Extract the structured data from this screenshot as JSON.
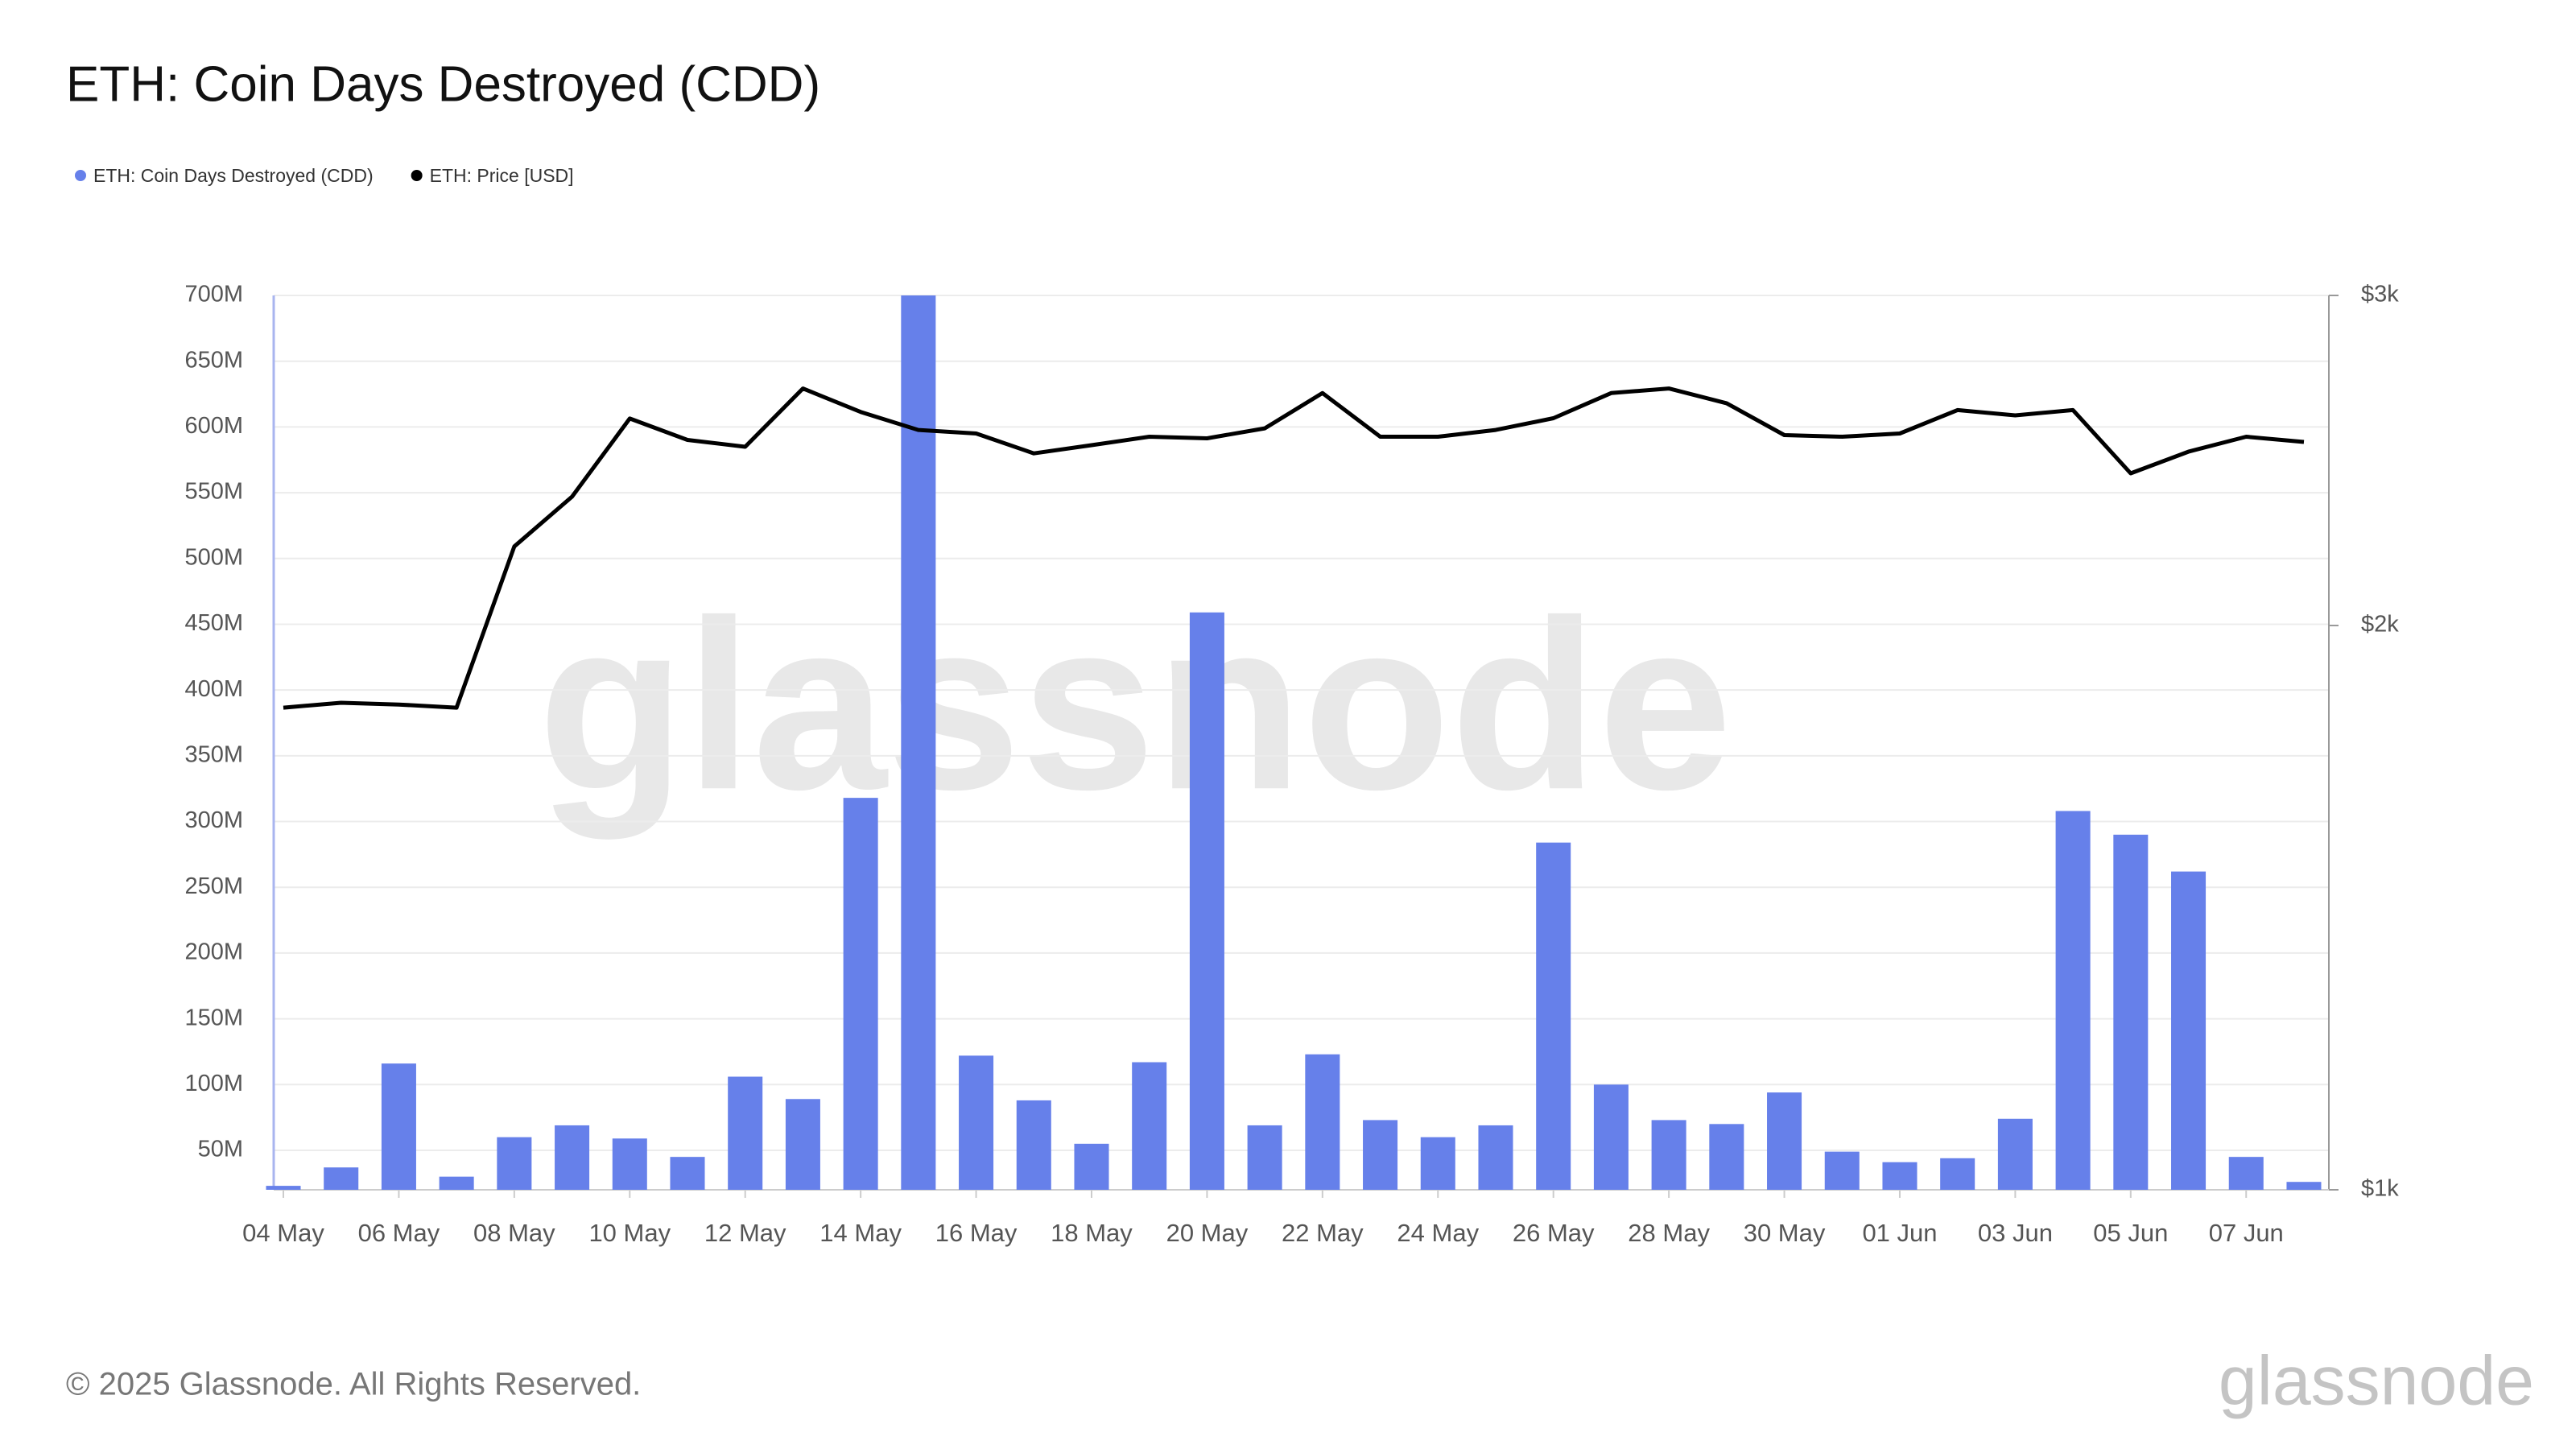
{
  "chart_data": {
    "type": "bar_line",
    "title": "ETH: Coin Days Destroyed (CDD)",
    "footer": "© 2025 Glassnode. All Rights Reserved.",
    "watermark": "glassnode",
    "logo": "glassnode",
    "legend": "top-left",
    "grid": true,
    "categories": [
      "04 May",
      null,
      "06 May",
      null,
      "08 May",
      null,
      "10 May",
      null,
      "12 May",
      null,
      "14 May",
      null,
      "16 May",
      null,
      "18 May",
      null,
      "20 May",
      null,
      "22 May",
      null,
      "24 May",
      null,
      "26 May",
      null,
      "28 May",
      null,
      "30 May",
      null,
      "01 Jun",
      null,
      "03 Jun",
      null,
      "05 Jun",
      null,
      "07 Jun",
      null
    ],
    "series": [
      {
        "name": "ETH: Coin Days Destroyed (CDD)",
        "color": "#6680ea",
        "type": "bar",
        "values": [
          23000000,
          37000000,
          116000000,
          30000000,
          60000000,
          69000000,
          59000000,
          45000000,
          106000000,
          89000000,
          318000000,
          700000000,
          122000000,
          88000000,
          55000000,
          117000000,
          459000000,
          69000000,
          123000000,
          73000000,
          60000000,
          69000000,
          284000000,
          100000000,
          73000000,
          70000000,
          94000000,
          49000000,
          41000000,
          44000000,
          74000000,
          308000000,
          290000000,
          262000000,
          45000000,
          26000000
        ]
      },
      {
        "name": "ETH: Price [USD]",
        "color": "#000000",
        "type": "line",
        "axis": "y2",
        "values": [
          1808,
          1819,
          1815,
          1808,
          2204,
          2343,
          2579,
          2512,
          2491,
          2676,
          2600,
          2543,
          2532,
          2471,
          2496,
          2522,
          2517,
          2548,
          2661,
          2522,
          2522,
          2543,
          2580,
          2661,
          2676,
          2628,
          2527,
          2522,
          2532,
          2606,
          2589,
          2606,
          2411,
          2476,
          2522,
          2506
        ]
      }
    ],
    "ylim": [
      20000000,
      700000000
    ],
    "yticks": [
      {
        "value": 50000000,
        "label": "50M"
      },
      {
        "value": 100000000,
        "label": "100M"
      },
      {
        "value": 150000000,
        "label": "150M"
      },
      {
        "value": 200000000,
        "label": "200M"
      },
      {
        "value": 250000000,
        "label": "250M"
      },
      {
        "value": 300000000,
        "label": "300M"
      },
      {
        "value": 350000000,
        "label": "350M"
      },
      {
        "value": 400000000,
        "label": "400M"
      },
      {
        "value": 450000000,
        "label": "450M"
      },
      {
        "value": 500000000,
        "label": "500M"
      },
      {
        "value": 550000000,
        "label": "550M"
      },
      {
        "value": 600000000,
        "label": "600M"
      },
      {
        "value": 650000000,
        "label": "650M"
      },
      {
        "value": 700000000,
        "label": "700M"
      }
    ],
    "y2lim": [
      1000,
      3000
    ],
    "y2scale": "log",
    "y2ticks": [
      {
        "value": 1000,
        "label": "$1k"
      },
      {
        "value": 2000,
        "label": "$2k"
      },
      {
        "value": 3000,
        "label": "$3k"
      }
    ]
  }
}
